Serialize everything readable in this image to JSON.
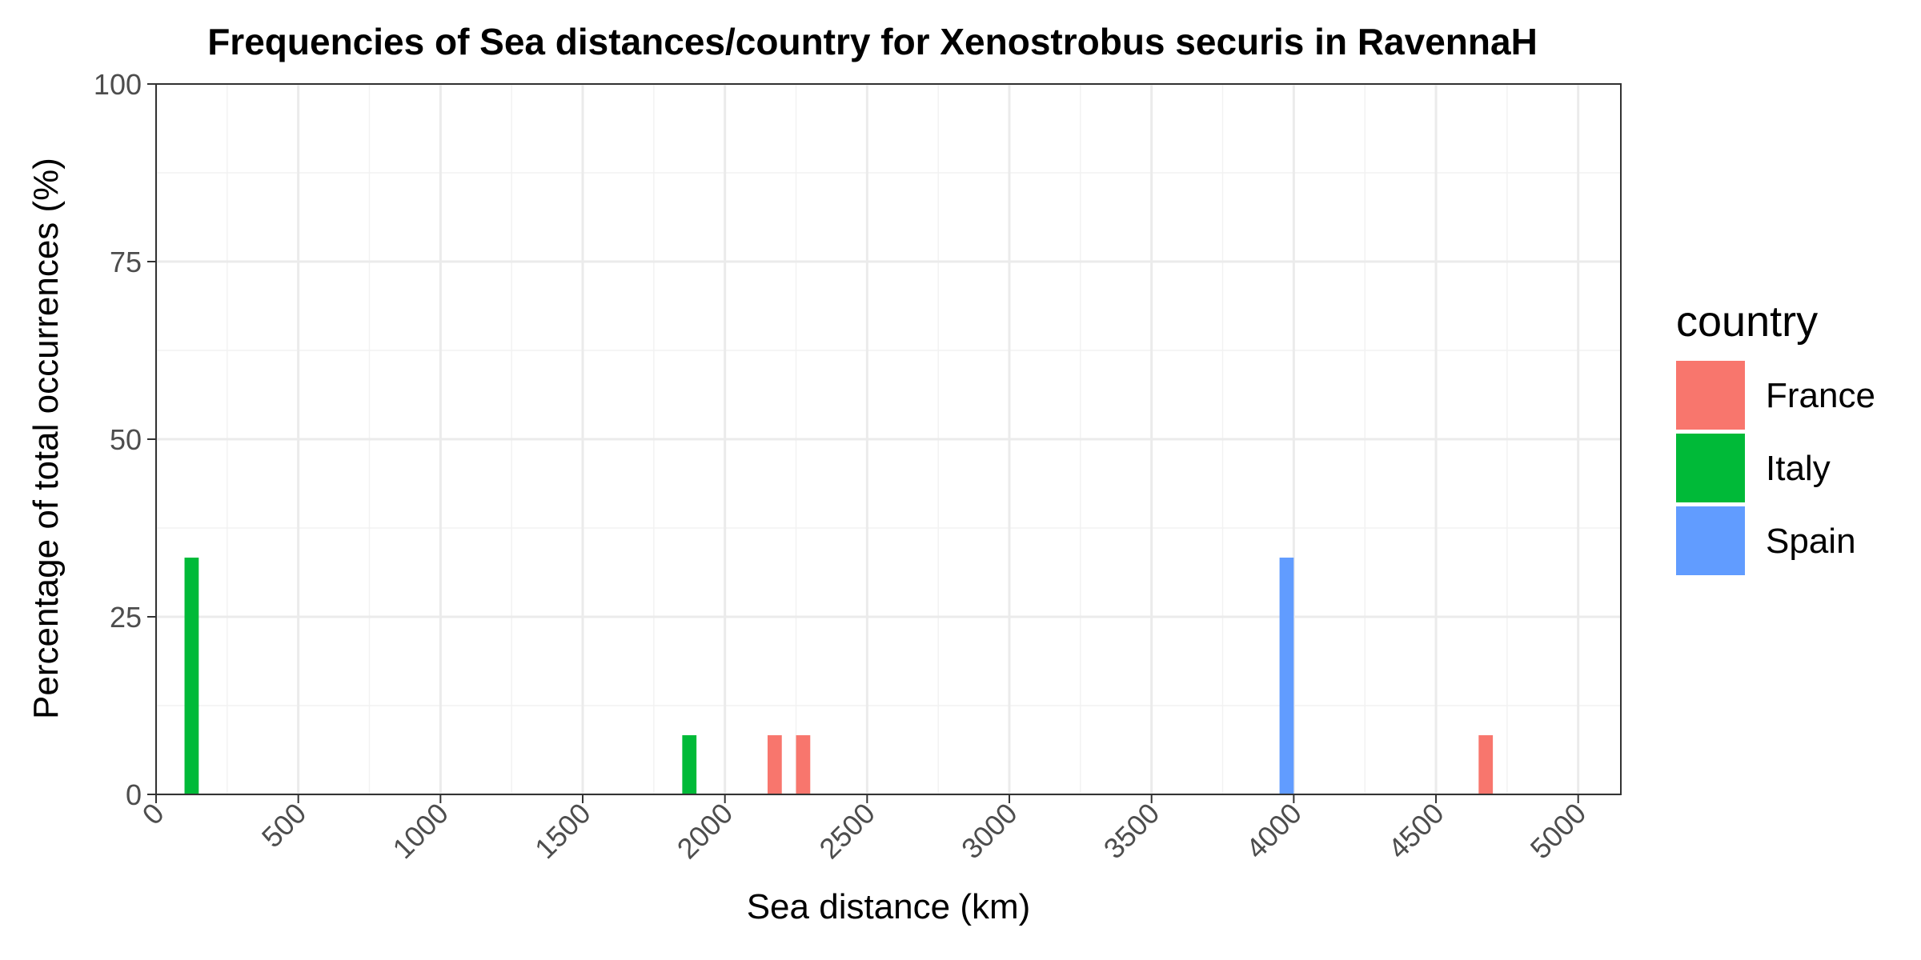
{
  "chart_data": {
    "type": "bar",
    "title": "Frequencies of Sea distances/country for Xenostrobus securis in RavennaH",
    "xlabel": "Sea distance (km)",
    "ylabel": "Percentage of total occurrences (%)",
    "xlim": [
      0,
      5150
    ],
    "ylim": [
      0,
      100
    ],
    "x_ticks": [
      0,
      500,
      1000,
      1500,
      2000,
      2500,
      3000,
      3500,
      4000,
      4500,
      5000
    ],
    "x_tick_labels": [
      "0",
      "500",
      "1000",
      "1500",
      "2000",
      "2500",
      "3000",
      "3500",
      "4000",
      "4500",
      "5000"
    ],
    "y_ticks": [
      0,
      25,
      50,
      75,
      100
    ],
    "y_tick_labels": [
      "0",
      "25",
      "50",
      "75",
      "100"
    ],
    "grid": true,
    "bin_width_km": 50,
    "legend": {
      "title": "country",
      "position": "right",
      "entries": [
        {
          "label": "France",
          "color": "#F8766D"
        },
        {
          "label": "Italy",
          "color": "#00BA38"
        },
        {
          "label": "Spain",
          "color": "#619CFF"
        }
      ]
    },
    "series": [
      {
        "name": "France",
        "color": "#F8766D",
        "points": [
          {
            "x": 2175,
            "y": 8.33
          },
          {
            "x": 2275,
            "y": 8.33
          },
          {
            "x": 4675,
            "y": 8.33
          }
        ]
      },
      {
        "name": "Italy",
        "color": "#00BA38",
        "points": [
          {
            "x": 125,
            "y": 33.33
          },
          {
            "x": 1875,
            "y": 8.33
          }
        ]
      },
      {
        "name": "Spain",
        "color": "#619CFF",
        "points": [
          {
            "x": 3975,
            "y": 33.33
          }
        ]
      }
    ]
  }
}
